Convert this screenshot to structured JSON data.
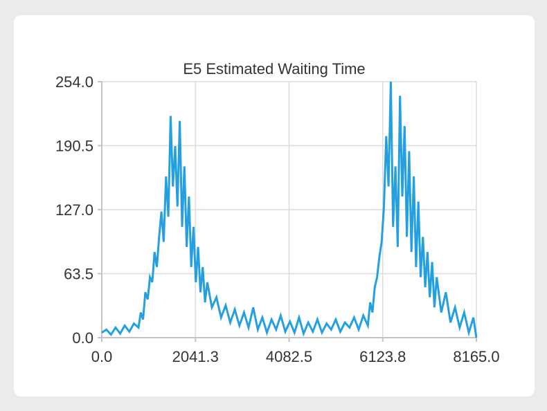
{
  "colors": {
    "background": "#ebebeb",
    "card": "#ffffff",
    "grid": "#dcdcdc",
    "axis": "#c4c4c4",
    "line": "#24a0e0",
    "text": "#333333"
  },
  "chart_data": {
    "type": "line",
    "title": "E5 Estimated Waiting Time",
    "xlabel": "",
    "ylabel": "",
    "xlim": [
      0,
      8165
    ],
    "ylim": [
      0,
      254
    ],
    "x_ticks": [
      "0.0",
      "2041.3",
      "4082.5",
      "6123.8",
      "8165.0"
    ],
    "y_ticks": [
      "254.0",
      "190.5",
      "127.0",
      "63.5",
      "0.0"
    ],
    "grid": true,
    "legend": "none",
    "series": [
      {
        "points": [
          [
            0,
            5
          ],
          [
            100,
            8
          ],
          [
            200,
            3
          ],
          [
            300,
            10
          ],
          [
            400,
            4
          ],
          [
            500,
            12
          ],
          [
            600,
            6
          ],
          [
            700,
            14
          ],
          [
            800,
            10
          ],
          [
            850,
            25
          ],
          [
            900,
            18
          ],
          [
            950,
            45
          ],
          [
            1000,
            38
          ],
          [
            1050,
            60
          ],
          [
            1100,
            55
          ],
          [
            1150,
            85
          ],
          [
            1200,
            70
          ],
          [
            1250,
            100
          ],
          [
            1300,
            125
          ],
          [
            1350,
            95
          ],
          [
            1400,
            160
          ],
          [
            1450,
            120
          ],
          [
            1500,
            220
          ],
          [
            1550,
            150
          ],
          [
            1600,
            190
          ],
          [
            1650,
            130
          ],
          [
            1700,
            215
          ],
          [
            1750,
            110
          ],
          [
            1800,
            170
          ],
          [
            1850,
            90
          ],
          [
            1900,
            140
          ],
          [
            1950,
            70
          ],
          [
            2000,
            110
          ],
          [
            2050,
            55
          ],
          [
            2100,
            90
          ],
          [
            2150,
            45
          ],
          [
            2200,
            70
          ],
          [
            2250,
            35
          ],
          [
            2300,
            55
          ],
          [
            2400,
            30
          ],
          [
            2500,
            40
          ],
          [
            2600,
            20
          ],
          [
            2700,
            32
          ],
          [
            2800,
            15
          ],
          [
            2900,
            28
          ],
          [
            3000,
            12
          ],
          [
            3100,
            25
          ],
          [
            3200,
            10
          ],
          [
            3300,
            30
          ],
          [
            3400,
            8
          ],
          [
            3500,
            20
          ],
          [
            3600,
            5
          ],
          [
            3700,
            18
          ],
          [
            3800,
            8
          ],
          [
            3900,
            22
          ],
          [
            4000,
            6
          ],
          [
            4100,
            16
          ],
          [
            4200,
            5
          ],
          [
            4300,
            20
          ],
          [
            4400,
            4
          ],
          [
            4500,
            15
          ],
          [
            4600,
            6
          ],
          [
            4700,
            18
          ],
          [
            4800,
            5
          ],
          [
            4900,
            14
          ],
          [
            5000,
            8
          ],
          [
            5100,
            18
          ],
          [
            5200,
            6
          ],
          [
            5300,
            15
          ],
          [
            5400,
            10
          ],
          [
            5500,
            20
          ],
          [
            5600,
            8
          ],
          [
            5700,
            22
          ],
          [
            5800,
            12
          ],
          [
            5850,
            35
          ],
          [
            5900,
            25
          ],
          [
            5950,
            50
          ],
          [
            6000,
            60
          ],
          [
            6050,
            80
          ],
          [
            6100,
            95
          ],
          [
            6150,
            130
          ],
          [
            6200,
            200
          ],
          [
            6250,
            150
          ],
          [
            6300,
            254
          ],
          [
            6350,
            110
          ],
          [
            6400,
            170
          ],
          [
            6450,
            90
          ],
          [
            6500,
            240
          ],
          [
            6550,
            140
          ],
          [
            6600,
            210
          ],
          [
            6650,
            100
          ],
          [
            6700,
            185
          ],
          [
            6750,
            85
          ],
          [
            6800,
            160
          ],
          [
            6850,
            70
          ],
          [
            6900,
            135
          ],
          [
            6950,
            60
          ],
          [
            7000,
            100
          ],
          [
            7050,
            50
          ],
          [
            7100,
            85
          ],
          [
            7150,
            40
          ],
          [
            7200,
            75
          ],
          [
            7250,
            30
          ],
          [
            7300,
            60
          ],
          [
            7400,
            25
          ],
          [
            7500,
            45
          ],
          [
            7600,
            15
          ],
          [
            7700,
            30
          ],
          [
            7800,
            10
          ],
          [
            7900,
            25
          ],
          [
            8000,
            5
          ],
          [
            8100,
            20
          ],
          [
            8165,
            0
          ]
        ]
      }
    ]
  }
}
